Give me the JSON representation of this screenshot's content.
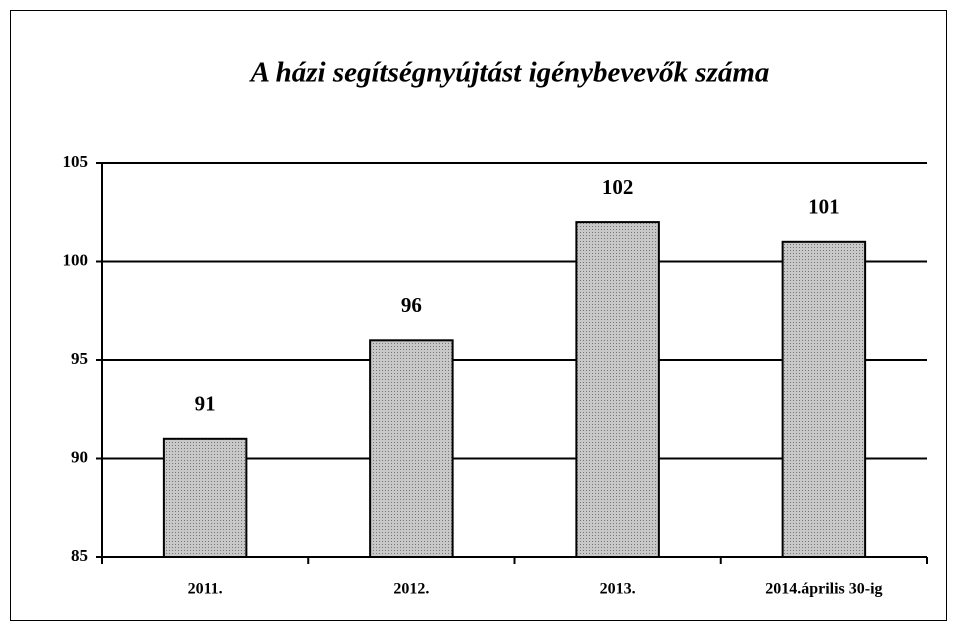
{
  "chart_data": {
    "type": "bar",
    "title": "A házi segítségnyújtást igénybevevők száma",
    "categories": [
      "2011.",
      "2012.",
      "2013.",
      "2014.április 30-ig"
    ],
    "values": [
      91,
      96,
      102,
      101
    ],
    "color": "#c8c8c8",
    "ylim": [
      85,
      105
    ],
    "yticks": [
      85,
      90,
      95,
      100,
      105
    ],
    "grid": true
  }
}
